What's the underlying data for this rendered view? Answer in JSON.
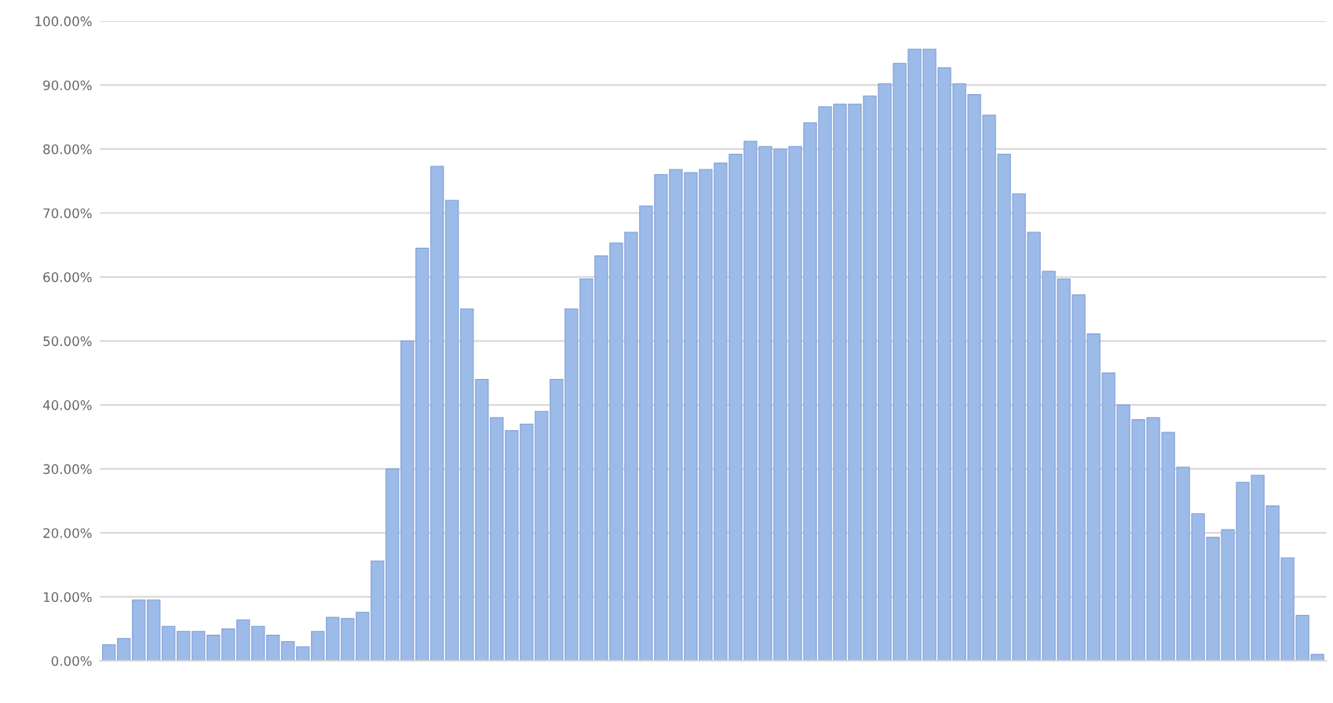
{
  "chart_data": {
    "type": "bar",
    "categories": [
      null,
      null,
      null,
      null,
      null,
      null,
      null,
      null,
      null,
      null,
      null,
      null,
      null,
      null,
      null,
      null,
      null,
      null,
      null,
      null,
      null,
      null,
      null,
      null,
      null,
      null,
      null,
      null,
      null,
      null,
      null,
      null,
      null,
      null,
      null,
      null,
      null,
      null,
      null,
      null,
      null,
      null,
      null,
      null,
      null,
      null,
      null,
      null,
      null,
      null,
      null,
      null,
      null,
      null,
      null,
      null,
      null,
      null,
      null,
      null,
      null,
      null,
      null,
      null,
      null,
      null,
      null,
      null,
      null,
      null,
      null,
      null,
      null,
      null,
      null,
      null,
      null,
      null,
      null,
      null,
      null,
      null
    ],
    "values": [
      2.5,
      3.5,
      9.5,
      9.5,
      5.4,
      4.6,
      4.6,
      4,
      5,
      6.4,
      5.4,
      4,
      3,
      2.2,
      4.6,
      6.8,
      6.6,
      7.6,
      15.6,
      30,
      50,
      64.5,
      77.3,
      72,
      55,
      44,
      38,
      36,
      37,
      39,
      44,
      55,
      59.7,
      63.3,
      65.3,
      67,
      71.1,
      76,
      76.8,
      76.3,
      76.8,
      77.8,
      79.2,
      81.2,
      80.4,
      80,
      80.4,
      84.1,
      86.6,
      87,
      87,
      88.3,
      90.2,
      93.4,
      95.6,
      95.6,
      92.7,
      90.2,
      88.5,
      85.3,
      79.2,
      73,
      67,
      60.9,
      59.7,
      57.2,
      51.1,
      45,
      40,
      37.7,
      38,
      35.7,
      30.3,
      23,
      19.3,
      20.5,
      27.9,
      29,
      24.2,
      16.1,
      7.1,
      1
    ],
    "color": "#9dbbe8",
    "ylim": [
      0,
      100
    ],
    "yticks": [
      {
        "value": 0,
        "label": "0.00%"
      },
      {
        "value": 10,
        "label": "10.00%"
      },
      {
        "value": 20,
        "label": "20.00%"
      },
      {
        "value": 30,
        "label": "30.00%"
      },
      {
        "value": 40,
        "label": "40.00%"
      },
      {
        "value": 50,
        "label": "50.00%"
      },
      {
        "value": 60,
        "label": "60.00%"
      },
      {
        "value": 70,
        "label": "70.00%"
      },
      {
        "value": 80,
        "label": "80.00%"
      },
      {
        "value": 90,
        "label": "90.00%"
      },
      {
        "value": 100,
        "label": "100.00%"
      }
    ],
    "grid": "y"
  }
}
